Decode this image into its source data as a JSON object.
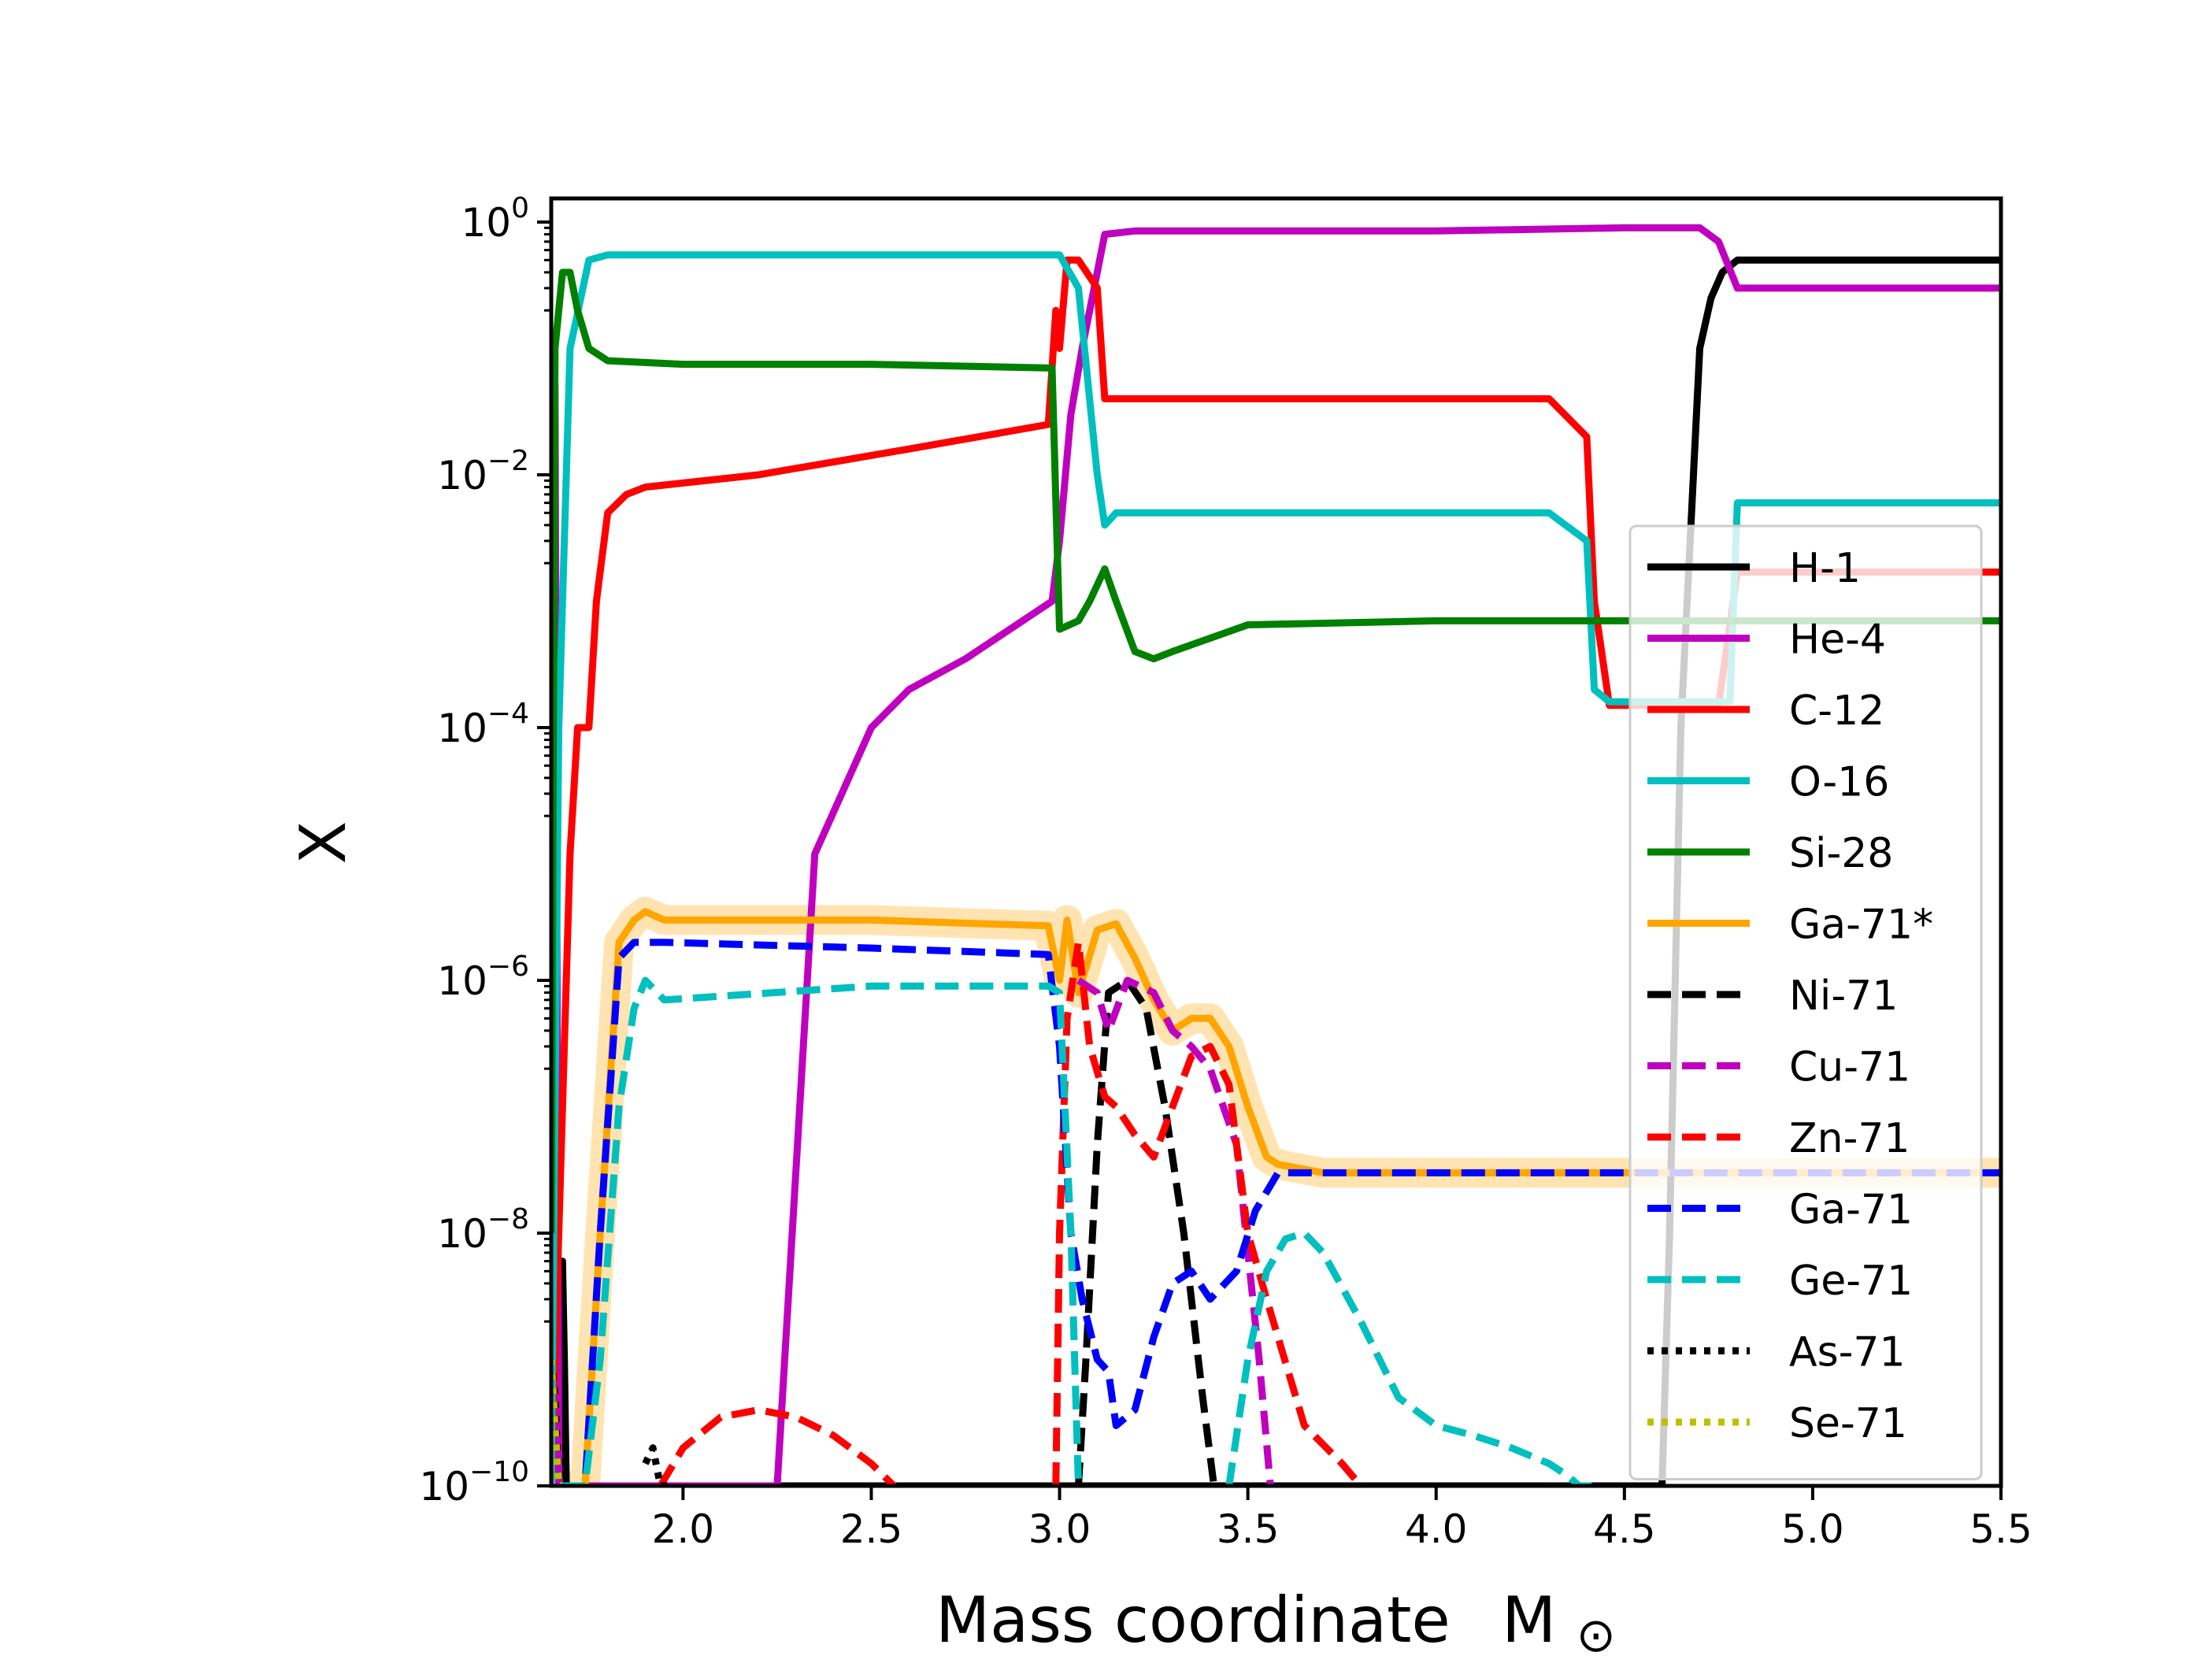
{
  "chart_data": {
    "type": "line",
    "title": "",
    "xlabel": "Mass coordinate",
    "xlabel_symbol": "M",
    "xlabel_subscript": "⊙",
    "ylabel": "X",
    "xlim": [
      1.65,
      5.5
    ],
    "ylim": [
      1e-10,
      1.6
    ],
    "yscale": "log",
    "grid": false,
    "legend_position": "right",
    "x_ticks": [
      "2.0",
      "2.5",
      "3.0",
      "3.5",
      "4.0",
      "4.5",
      "5.0",
      "5.5"
    ],
    "y_ticks": [
      {
        "base": "10",
        "exp": "0"
      },
      {
        "base": "10",
        "exp": "−2"
      },
      {
        "base": "10",
        "exp": "−4"
      },
      {
        "base": "10",
        "exp": "−6"
      },
      {
        "base": "10",
        "exp": "−8"
      },
      {
        "base": "10",
        "exp": "−10"
      }
    ],
    "series": [
      {
        "name": "H-1",
        "color": "#000000",
        "style": "solid",
        "x": [
          1.67,
          1.675,
          1.68,
          1.685,
          1.69,
          4.6,
          4.62,
          4.65,
          4.7,
          4.73,
          4.76,
          4.8,
          5.5
        ],
        "y": [
          1e-10,
          1e-09,
          6e-09,
          1e-09,
          1e-10,
          1e-10,
          1e-08,
          0.0001,
          0.1,
          0.25,
          0.4,
          0.5,
          0.5
        ]
      },
      {
        "name": "He-4",
        "color": "#bf00bf",
        "style": "solid",
        "x": [
          1.65,
          1.66,
          1.67,
          2.25,
          2.35,
          2.5,
          2.6,
          2.75,
          2.98,
          3.0,
          3.03,
          3.06,
          3.1,
          3.12,
          3.2,
          4.0,
          4.5,
          4.7,
          4.75,
          4.8,
          5.5
        ],
        "y": [
          0.14,
          0.05,
          1e-10,
          1e-10,
          1e-05,
          0.0001,
          0.0002,
          0.00035,
          0.001,
          0.003,
          0.03,
          0.1,
          0.4,
          0.8,
          0.85,
          0.85,
          0.9,
          0.9,
          0.7,
          0.3,
          0.3
        ]
      },
      {
        "name": "C-12",
        "color": "#ff0000",
        "style": "solid",
        "x": [
          1.65,
          1.7,
          1.72,
          1.75,
          1.77,
          1.8,
          1.85,
          1.9,
          2.2,
          2.6,
          2.97,
          2.99,
          3.0,
          3.02,
          3.05,
          3.1,
          3.12,
          3.15,
          4.3,
          4.4,
          4.42,
          4.46,
          4.75,
          4.8,
          5.5
        ],
        "y": [
          1e-10,
          1e-05,
          0.0001,
          0.0001,
          0.001,
          0.005,
          0.007,
          0.008,
          0.01,
          0.016,
          0.025,
          0.2,
          0.1,
          0.5,
          0.5,
          0.3,
          0.04,
          0.04,
          0.04,
          0.02,
          0.001,
          0.00015,
          0.00015,
          0.0017,
          0.0017
        ]
      },
      {
        "name": "O-16",
        "color": "#00bfbf",
        "style": "solid",
        "x": [
          1.65,
          1.67,
          1.7,
          1.75,
          1.8,
          2.5,
          2.95,
          3.0,
          3.05,
          3.1,
          3.12,
          3.15,
          3.2,
          4.3,
          4.4,
          4.42,
          4.46,
          4.78,
          4.8,
          5.5
        ],
        "y": [
          1e-10,
          0.0001,
          0.1,
          0.5,
          0.55,
          0.55,
          0.55,
          0.55,
          0.3,
          0.01,
          0.004,
          0.005,
          0.005,
          0.005,
          0.003,
          0.0002,
          0.00016,
          0.00016,
          0.006,
          0.006
        ]
      },
      {
        "name": "Si-28",
        "color": "#008000",
        "style": "solid",
        "x": [
          1.65,
          1.66,
          1.68,
          1.7,
          1.72,
          1.75,
          1.8,
          2.0,
          2.5,
          2.98,
          3.0,
          3.05,
          3.08,
          3.12,
          3.15,
          3.2,
          3.25,
          3.3,
          3.5,
          4.0,
          5.5
        ],
        "y": [
          1e-08,
          0.1,
          0.4,
          0.4,
          0.2,
          0.1,
          0.08,
          0.075,
          0.075,
          0.07,
          0.0006,
          0.0007,
          0.001,
          0.0018,
          0.001,
          0.0004,
          0.00035,
          0.0004,
          0.00065,
          0.0007,
          0.0007
        ]
      },
      {
        "name": "Ga-71*",
        "color": "#ffa500",
        "style": "solid",
        "halo": true,
        "x": [
          1.68,
          1.74,
          1.78,
          1.83,
          1.87,
          1.9,
          1.95,
          2.0,
          2.5,
          2.97,
          3.0,
          3.02,
          3.05,
          3.1,
          3.15,
          3.2,
          3.25,
          3.3,
          3.35,
          3.4,
          3.45,
          3.5,
          3.55,
          3.58,
          3.7,
          4.0,
          5.5
        ],
        "y": [
          1e-10,
          1e-10,
          1e-08,
          2e-06,
          3e-06,
          3.5e-06,
          3e-06,
          3e-06,
          3e-06,
          2.7e-06,
          1e-06,
          3e-06,
          8e-07,
          2.5e-06,
          2.8e-06,
          1.5e-06,
          7e-07,
          4e-07,
          5e-07,
          5e-07,
          3e-07,
          1e-07,
          4e-08,
          3.5e-08,
          3e-08,
          3e-08,
          3e-08
        ]
      },
      {
        "name": "Ni-71",
        "color": "#000000",
        "style": "dashed",
        "x": [
          3.05,
          3.07,
          3.1,
          3.13,
          3.18,
          3.23,
          3.28,
          3.33,
          3.38,
          3.41
        ],
        "y": [
          1e-10,
          1e-09,
          5e-08,
          8e-07,
          1e-06,
          6e-07,
          1e-07,
          1e-08,
          5e-10,
          1e-10
        ]
      },
      {
        "name": "Cu-71",
        "color": "#bf00bf",
        "style": "dashed",
        "x": [
          3.05,
          3.1,
          3.13,
          3.18,
          3.25,
          3.3,
          3.35,
          3.4,
          3.47,
          3.53,
          3.56
        ],
        "y": [
          1e-06,
          8e-07,
          4e-07,
          1e-06,
          8e-07,
          4e-07,
          3e-07,
          2e-07,
          5e-08,
          1e-09,
          1e-10
        ]
      },
      {
        "name": "Zn-71",
        "color": "#ff0000",
        "style": "dashed",
        "x": [
          2.99,
          3.0,
          3.02,
          3.05,
          3.08,
          3.12,
          3.15,
          3.2,
          3.25,
          3.3,
          3.35,
          3.4,
          3.45,
          3.5,
          3.55,
          3.65,
          3.75,
          3.8,
          1.94,
          2.0,
          2.1,
          2.2,
          2.3,
          2.4,
          2.5,
          2.56
        ],
        "y": [
          1e-10,
          1e-08,
          5e-07,
          2e-06,
          3e-07,
          1.2e-07,
          1e-07,
          6e-08,
          4e-08,
          1e-07,
          2.5e-07,
          3e-07,
          1.5e-07,
          1e-08,
          3e-09,
          3e-10,
          1.5e-10,
          1e-10,
          1e-10,
          2e-10,
          3.5e-10,
          4e-10,
          3.5e-10,
          2.5e-10,
          1.5e-10,
          1e-10
        ],
        "breaks": [
          18
        ]
      },
      {
        "name": "Ga-71",
        "color": "#0000ff",
        "style": "dashed",
        "x": [
          1.68,
          1.74,
          1.78,
          1.83,
          1.87,
          1.9,
          1.95,
          2.5,
          2.97,
          3.0,
          3.03,
          3.06,
          3.1,
          3.13,
          3.15,
          3.2,
          3.25,
          3.3,
          3.35,
          3.4,
          3.47,
          3.52,
          3.58,
          3.7,
          4.0,
          5.5
        ],
        "y": [
          1e-10,
          1e-10,
          1e-08,
          1.5e-06,
          2e-06,
          2e-06,
          2e-06,
          1.8e-06,
          1.6e-06,
          3e-07,
          1e-08,
          3e-09,
          1e-09,
          8e-10,
          3e-10,
          4e-10,
          1.5e-09,
          4e-09,
          5e-09,
          3e-09,
          5e-09,
          1.5e-08,
          3e-08,
          3e-08,
          3e-08,
          3e-08
        ]
      },
      {
        "name": "Ge-71",
        "color": "#00bfbf",
        "style": "dashed",
        "x": [
          1.68,
          1.74,
          1.78,
          1.83,
          1.87,
          1.9,
          1.95,
          2.5,
          2.97,
          3.0,
          3.03,
          3.05,
          3.45,
          3.5,
          3.55,
          3.6,
          3.65,
          3.7,
          3.8,
          3.9,
          4.0,
          4.1,
          4.2,
          4.3,
          4.35,
          4.38,
          4.42
        ],
        "y": [
          1e-10,
          1e-10,
          1e-09,
          1e-07,
          6e-07,
          1e-06,
          7e-07,
          9e-07,
          9e-07,
          8e-07,
          1e-08,
          1e-10,
          1e-10,
          1e-09,
          5e-09,
          9e-09,
          1e-08,
          7e-09,
          2e-09,
          5e-10,
          3e-10,
          2.5e-10,
          2e-10,
          1.5e-10,
          1.2e-10,
          1e-10,
          1e-10
        ],
        "breaks": [
          12
        ]
      },
      {
        "name": "As-71",
        "color": "#000000",
        "style": "dotted",
        "x": [
          1.65,
          1.66,
          1.67,
          1.9,
          1.92,
          1.94,
          1.96
        ],
        "y": [
          1e-09,
          5e-10,
          1e-10,
          1.5e-10,
          2e-10,
          1e-10,
          1e-10
        ],
        "breaks": [
          3
        ]
      },
      {
        "name": "Se-71",
        "color": "#bfbf00",
        "style": "dotted",
        "x": [
          1.65,
          1.66,
          1.67,
          1.68
        ],
        "y": [
          1e-09,
          3e-10,
          1e-10,
          1e-10
        ]
      }
    ]
  }
}
